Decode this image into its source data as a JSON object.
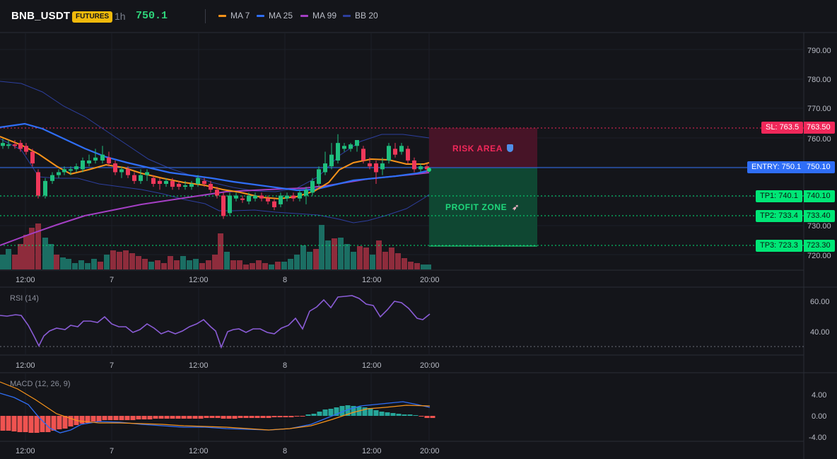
{
  "header": {
    "symbol": "BNB_USDT",
    "badge": "FUTURES",
    "timeframe": "1h",
    "last_price": "750.1"
  },
  "indicators": [
    {
      "label": "MA 7",
      "color": "#f7931a"
    },
    {
      "label": "MA 25",
      "color": "#2f6ef6"
    },
    {
      "label": "MA 99",
      "color": "#a43fc4"
    },
    {
      "label": "BB 20",
      "color": "#2d3f9e"
    }
  ],
  "price_axis": [
    "790.00",
    "780.00",
    "770.00",
    "760.00",
    "730.00",
    "720.00"
  ],
  "levels": {
    "sl": {
      "tag": "SL: 763.5",
      "value": "763.50",
      "color": "#f0285a"
    },
    "entry": {
      "tag": "ENTRY: 750.1",
      "value": "750.10",
      "color": "#2f6ef6"
    },
    "tp1": {
      "tag": "TP1: 740.1",
      "value": "740.10",
      "color": "#00e676"
    },
    "tp2": {
      "tag": "TP2: 733.4",
      "value": "733.40",
      "color": "#00e676"
    },
    "tp3": {
      "tag": "TP3: 723.3",
      "value": "723.30",
      "color": "#00e676"
    }
  },
  "zones": {
    "risk": "RISK AREA",
    "profit": "PROFIT ZONE"
  },
  "time_axis": [
    "12:00",
    "7",
    "12:00",
    "8",
    "12:00",
    "20:00"
  ],
  "rsi": {
    "title": "RSI (14)",
    "axis": [
      "60.00",
      "40.00"
    ]
  },
  "macd": {
    "title": "MACD (12, 26, 9)",
    "axis": [
      "4.00",
      "0.00",
      "-4.00"
    ]
  },
  "colors": {
    "up": "#1fbf7e",
    "down": "#f0385a",
    "vol_up": "#1b6e63",
    "vol_down": "#8e2c3c",
    "rsi": "#8a5cd6",
    "macd": "#2f6ef6",
    "signal": "#f7931a"
  }
}
